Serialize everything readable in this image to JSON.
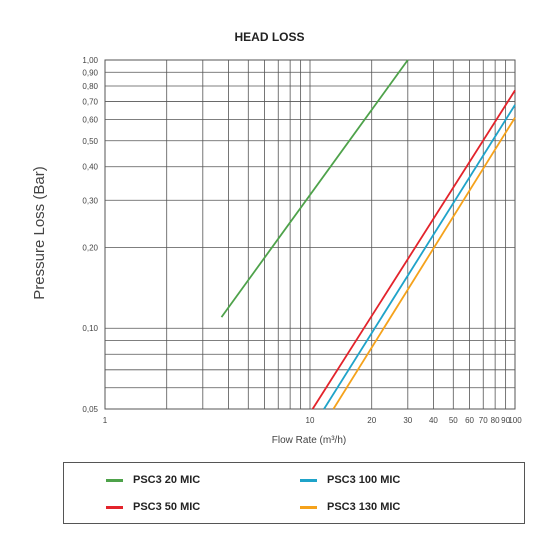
{
  "chart_data": {
    "type": "line",
    "title": "HEAD LOSS",
    "xlabel": "Flow Rate (m³/h)",
    "ylabel": "Pressure Loss (Bar)",
    "xscale": "log",
    "yscale": "log",
    "xlim": [
      1,
      100
    ],
    "ylim": [
      0.05,
      1.0
    ],
    "grid": true,
    "legend_position": "bottom",
    "x_tick_labels": [
      {
        "value": 1,
        "label": "1"
      },
      {
        "value": 10,
        "label": "10"
      },
      {
        "value": 20,
        "label": "20"
      },
      {
        "value": 30,
        "label": "30"
      },
      {
        "value": 40,
        "label": "40"
      },
      {
        "value": 50,
        "label": "50"
      },
      {
        "value": 60,
        "label": "60"
      },
      {
        "value": 70,
        "label": "70"
      },
      {
        "value": 80,
        "label": "80"
      },
      {
        "value": 90,
        "label": "90"
      },
      {
        "value": 100,
        "label": "100"
      }
    ],
    "x_minor_gridlines": [
      2,
      3,
      4,
      5,
      6,
      7,
      8,
      9,
      20,
      30,
      40,
      50,
      60,
      70,
      80,
      90
    ],
    "y_tick_labels": [
      {
        "value": 0.05,
        "label": "0,05"
      },
      {
        "value": 0.1,
        "label": "0,10"
      },
      {
        "value": 0.2,
        "label": "0,20"
      },
      {
        "value": 0.3,
        "label": "0,30"
      },
      {
        "value": 0.4,
        "label": "0,40"
      },
      {
        "value": 0.5,
        "label": "0,50"
      },
      {
        "value": 0.6,
        "label": "0,60"
      },
      {
        "value": 0.7,
        "label": "0,70"
      },
      {
        "value": 0.8,
        "label": "0,80"
      },
      {
        "value": 0.9,
        "label": "0,90"
      },
      {
        "value": 1.0,
        "label": "1,00"
      }
    ],
    "y_minor_gridlines": [
      0.06,
      0.07,
      0.08,
      0.09
    ],
    "series": [
      {
        "name": "PSC3 20 MIC",
        "color": "#4ea24a",
        "points": [
          [
            3.7,
            0.11
          ],
          [
            30,
            1.0
          ]
        ]
      },
      {
        "name": "PSC3 50 MIC",
        "color": "#e3232b",
        "points": [
          [
            10.3,
            0.05
          ],
          [
            100,
            0.77
          ]
        ]
      },
      {
        "name": "PSC3 100 MIC",
        "color": "#1fa3c9",
        "points": [
          [
            11.7,
            0.05
          ],
          [
            100,
            0.68
          ]
        ]
      },
      {
        "name": "PSC3 130 MIC",
        "color": "#f5a21b",
        "points": [
          [
            13.0,
            0.05
          ],
          [
            100,
            0.61
          ]
        ]
      }
    ]
  },
  "legend": {
    "items": [
      {
        "label": "PSC3 20 MIC",
        "color": "#4ea24a"
      },
      {
        "label": "PSC3 50 MIC",
        "color": "#e3232b"
      },
      {
        "label": "PSC3 100 MIC",
        "color": "#1fa3c9"
      },
      {
        "label": "PSC3 130 MIC",
        "color": "#f5a21b"
      }
    ]
  }
}
